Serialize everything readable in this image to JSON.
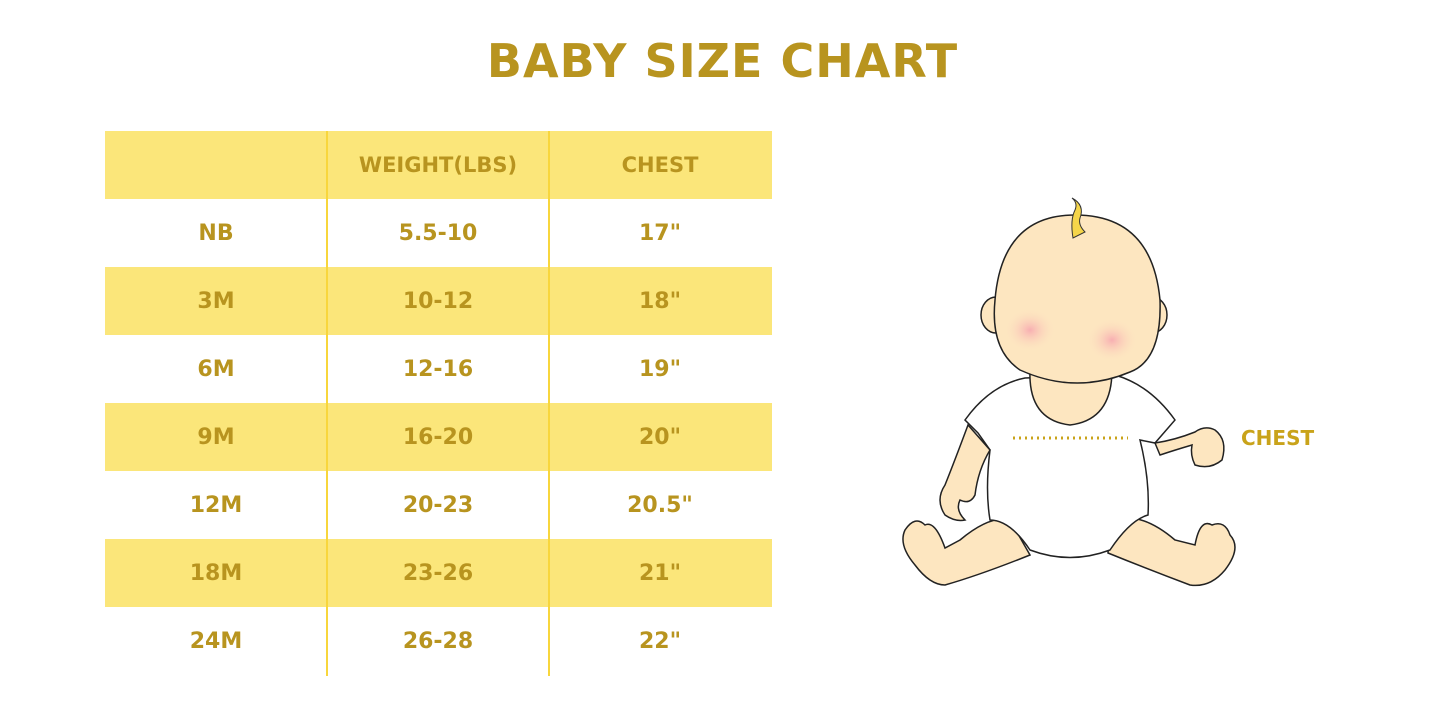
{
  "title": "BABY SIZE CHART",
  "table": {
    "headers": [
      "",
      "WEIGHT(LBS)",
      "CHEST"
    ],
    "rows": [
      [
        "NB",
        "5.5-10",
        "17\""
      ],
      [
        "3M",
        "10-12",
        "18\""
      ],
      [
        "6M",
        "12-16",
        "19\""
      ],
      [
        "9M",
        "16-20",
        "20\""
      ],
      [
        "12M",
        "20-23",
        "20.5\""
      ],
      [
        "18M",
        "23-26",
        "21\""
      ],
      [
        "24M",
        "26-28",
        "22\""
      ]
    ]
  },
  "illustration": {
    "chest_label": "CHEST"
  },
  "colors": {
    "text": "#B8941F",
    "stripe": "#FBE67A",
    "divider": "#F8D63C",
    "skin": "#FDE6C0",
    "hair": "#F5D54A"
  }
}
